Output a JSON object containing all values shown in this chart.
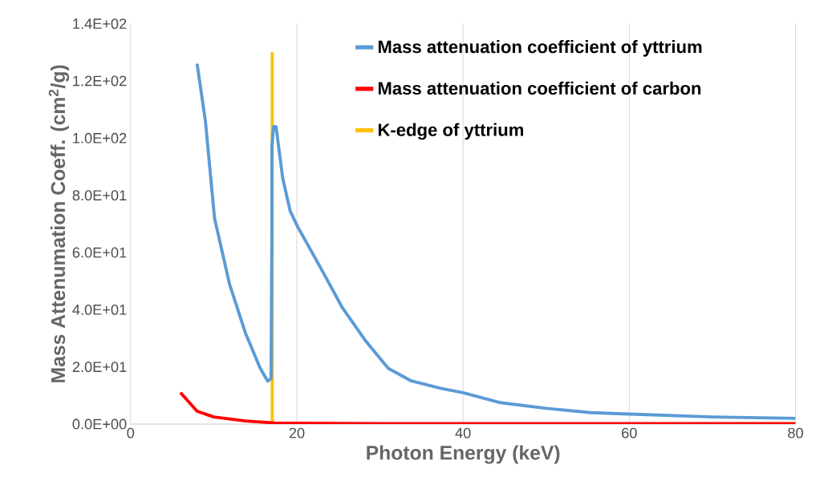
{
  "chart_data": {
    "type": "line",
    "xlabel": "Photon Energy (keV)",
    "ylabel": "Mass Attenumation Coeff. (cm$^{2}$/g)",
    "xlim": [
      0,
      80
    ],
    "ylim": [
      0,
      140
    ],
    "xticks": [
      0,
      20,
      40,
      60,
      80
    ],
    "yticks": [
      {
        "value": 0,
        "label": "0.0E+00"
      },
      {
        "value": 20,
        "label": "2.0E+01"
      },
      {
        "value": 40,
        "label": "4.0E+01"
      },
      {
        "value": 60,
        "label": "6.0E+01"
      },
      {
        "value": 80,
        "label": "8.0E+01"
      },
      {
        "value": 100,
        "label": "1.0E+02"
      },
      {
        "value": 120,
        "label": "1.2E+02"
      },
      {
        "value": 140,
        "label": "1.4E+02"
      }
    ],
    "grid": "x",
    "legend": "top right",
    "marker": "none",
    "line_style": "solid",
    "series": [
      {
        "name": "Mass attenuation coefficient of yttrium",
        "color": "#5b9bd5",
        "x": [
          8,
          9,
          10.1,
          11.9,
          13.8,
          15.6,
          16.5,
          16.9,
          17.0,
          17.0,
          17.2,
          17.5,
          18.3,
          19.2,
          20.1,
          22.8,
          25.5,
          28.2,
          31,
          33.7,
          37.3,
          40,
          44.5,
          50,
          55.4,
          60,
          70,
          80
        ],
        "values": [
          126,
          106,
          72,
          49,
          32,
          19.5,
          15,
          16,
          68,
          97,
          104,
          104,
          86,
          74.5,
          69,
          55,
          40.6,
          29.4,
          19.5,
          15.2,
          12.5,
          11,
          7.5,
          5.5,
          4,
          3.5,
          2.5,
          2
        ]
      },
      {
        "name": "Mass attenuation coefficient of carbon",
        "color": "#ff0000",
        "x": [
          6,
          8,
          10,
          13.8,
          17.4,
          20,
          30,
          40,
          60,
          80
        ],
        "values": [
          11,
          4.5,
          2.5,
          1.1,
          0.4,
          0.3,
          0.2,
          0.2,
          0.2,
          0.2
        ]
      },
      {
        "name": "K-edge of yttrium",
        "color": "#ffc000",
        "x": [
          17.04,
          17.04
        ],
        "values": [
          0,
          130
        ]
      }
    ]
  }
}
